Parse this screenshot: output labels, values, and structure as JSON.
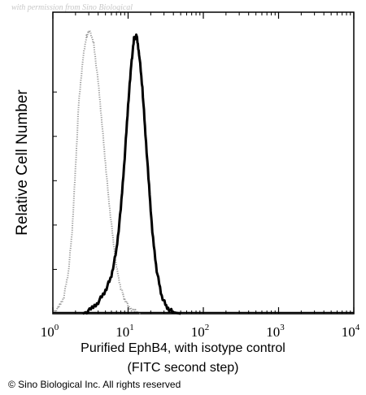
{
  "watermark": "with permission from Sino Biological",
  "copyright": "© Sino Biological Inc. All rights reserved",
  "chart_data": {
    "type": "area",
    "title": "",
    "xlabel_line1": "Purified EphB4, with isotype control",
    "xlabel_line2": "(FITC second step)",
    "ylabel": "Relative Cell Number",
    "x_scale": "log",
    "xlim": [
      1,
      10000
    ],
    "ylim": [
      0,
      100
    ],
    "x_ticks": [
      {
        "base": "10",
        "exp": "0",
        "value": 1
      },
      {
        "base": "10",
        "exp": "1",
        "value": 10
      },
      {
        "base": "10",
        "exp": "2",
        "value": 100
      },
      {
        "base": "10",
        "exp": "3",
        "value": 1000
      },
      {
        "base": "10",
        "exp": "4",
        "value": 10000
      }
    ],
    "grid": false,
    "legend": "none",
    "series": [
      {
        "role": "isotype-control",
        "style": "dotted",
        "color": "#9a9a9a",
        "points": [
          [
            1.0,
            0.5
          ],
          [
            1.2,
            2
          ],
          [
            1.4,
            6
          ],
          [
            1.6,
            14
          ],
          [
            1.8,
            28
          ],
          [
            2.0,
            50
          ],
          [
            2.2,
            72
          ],
          [
            2.5,
            88
          ],
          [
            2.8,
            96
          ],
          [
            3.1,
            98
          ],
          [
            3.5,
            93
          ],
          [
            4.0,
            80
          ],
          [
            4.5,
            66
          ],
          [
            5.0,
            52
          ],
          [
            5.6,
            38
          ],
          [
            6.3,
            26
          ],
          [
            7.0,
            16
          ],
          [
            8.0,
            9
          ],
          [
            9.0,
            5
          ],
          [
            10.5,
            2
          ],
          [
            12.5,
            0.8
          ],
          [
            15.0,
            0
          ]
        ]
      },
      {
        "role": "EphB4",
        "style": "solid",
        "color": "#000000",
        "points": [
          [
            2.5,
            0
          ],
          [
            3.2,
            1.5
          ],
          [
            4.0,
            4
          ],
          [
            5.0,
            8
          ],
          [
            6.0,
            13
          ],
          [
            7.0,
            22
          ],
          [
            8.0,
            36
          ],
          [
            9.0,
            54
          ],
          [
            10.0,
            72
          ],
          [
            11.0,
            86
          ],
          [
            12.0,
            95
          ],
          [
            13.0,
            96
          ],
          [
            14.0,
            90
          ],
          [
            15.5,
            78
          ],
          [
            17.0,
            62
          ],
          [
            19.0,
            44
          ],
          [
            21.0,
            28
          ],
          [
            24.0,
            15
          ],
          [
            28.0,
            6
          ],
          [
            33.0,
            2
          ],
          [
            40.0,
            0.5
          ],
          [
            50.0,
            0
          ]
        ]
      }
    ]
  }
}
